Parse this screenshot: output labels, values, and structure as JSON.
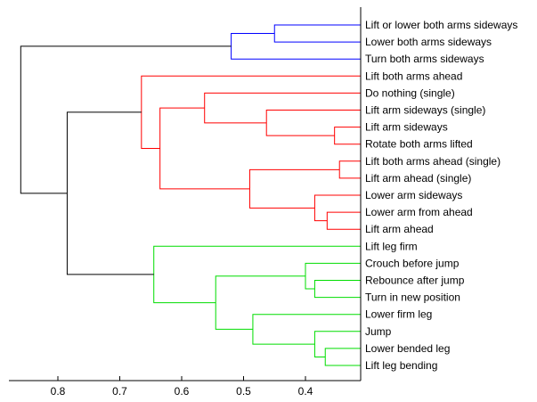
{
  "chart_data": {
    "type": "dendrogram",
    "xlim": [
      0.9,
      0.32
    ],
    "x_ticks": [
      0.8,
      0.7,
      0.6,
      0.5,
      0.4
    ],
    "leaves": [
      "Lift or lower both arms sideways",
      "Lower both arms sideways",
      "Turn both arms sideways",
      "Lift both arms ahead",
      "Do nothing (single)",
      "Lift arm sideways (single)",
      "Lift arm sideways",
      "Rotate both arms lifted",
      "Lift both arms ahead (single)",
      "Lift arm ahead (single)",
      "Lower arm sideways",
      "Lower arm from ahead",
      "Lift arm ahead",
      "Lift leg firm",
      "Crouch before jump",
      "Rebounce after jump",
      "Turn in new position",
      "Lower firm leg",
      "Jump",
      "Lower bended leg",
      "Lift leg bending"
    ],
    "merges": [
      {
        "id": "b1",
        "children": [
          "L0",
          "L1"
        ],
        "height": 0.45,
        "color": "#0000ff"
      },
      {
        "id": "b2",
        "children": [
          "b1",
          "L2"
        ],
        "height": 0.52,
        "color": "#0000ff"
      },
      {
        "id": "r1",
        "children": [
          "L6",
          "L7"
        ],
        "height": 0.353,
        "color": "#ff0000"
      },
      {
        "id": "r2",
        "children": [
          "L5",
          "r1"
        ],
        "height": 0.463,
        "color": "#ff0000"
      },
      {
        "id": "r3",
        "children": [
          "L4",
          "r2"
        ],
        "height": 0.563,
        "color": "#ff0000"
      },
      {
        "id": "r4",
        "children": [
          "L8",
          "L9"
        ],
        "height": 0.345,
        "color": "#ff0000"
      },
      {
        "id": "r5",
        "children": [
          "L11",
          "L12"
        ],
        "height": 0.365,
        "color": "#ff0000"
      },
      {
        "id": "r6",
        "children": [
          "L10",
          "r5"
        ],
        "height": 0.385,
        "color": "#ff0000"
      },
      {
        "id": "r7",
        "children": [
          "r4",
          "r6"
        ],
        "height": 0.49,
        "color": "#ff0000"
      },
      {
        "id": "r8",
        "children": [
          "r3",
          "r7"
        ],
        "height": 0.635,
        "color": "#ff0000"
      },
      {
        "id": "r9",
        "children": [
          "L3",
          "r8"
        ],
        "height": 0.665,
        "color": "#ff0000"
      },
      {
        "id": "g1",
        "children": [
          "L15",
          "L16"
        ],
        "height": 0.385,
        "color": "#00dd00"
      },
      {
        "id": "g2",
        "children": [
          "L14",
          "g1"
        ],
        "height": 0.4,
        "color": "#00dd00"
      },
      {
        "id": "g3",
        "children": [
          "L19",
          "L20"
        ],
        "height": 0.368,
        "color": "#00dd00"
      },
      {
        "id": "g4",
        "children": [
          "L18",
          "g3"
        ],
        "height": 0.385,
        "color": "#00dd00"
      },
      {
        "id": "g5",
        "children": [
          "L17",
          "g4"
        ],
        "height": 0.485,
        "color": "#00dd00"
      },
      {
        "id": "g6",
        "children": [
          "g2",
          "g5"
        ],
        "height": 0.545,
        "color": "#00dd00"
      },
      {
        "id": "g7",
        "children": [
          "L13",
          "g6"
        ],
        "height": 0.645,
        "color": "#00dd00"
      },
      {
        "id": "k1",
        "children": [
          "r9",
          "g7"
        ],
        "height": 0.785,
        "color": "#000000"
      },
      {
        "id": "k2",
        "children": [
          "b2",
          "k1"
        ],
        "height": 0.86,
        "color": "#000000"
      }
    ]
  }
}
